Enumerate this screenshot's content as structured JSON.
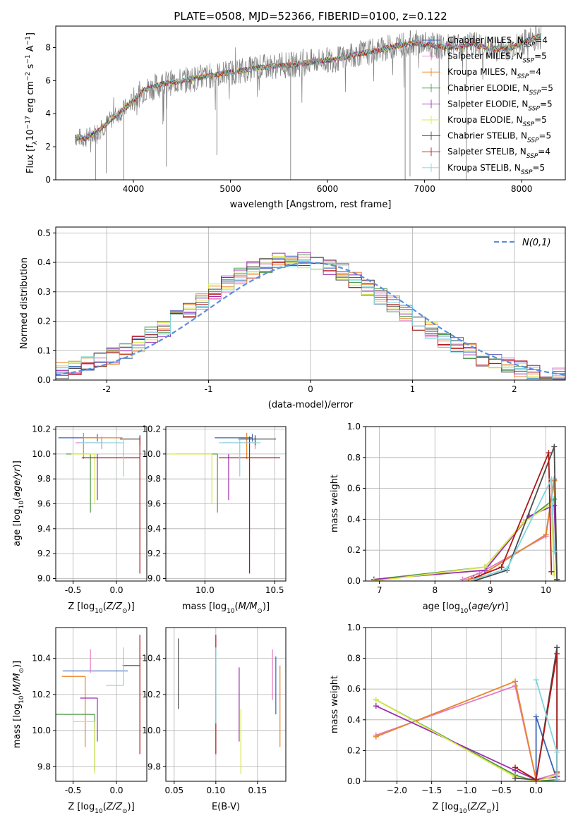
{
  "page_title": "PLATE=0508, MJD=52366, FIBERID=0100, z=0.122",
  "models": [
    {
      "name": "Chabrier MILES",
      "nssp": "4",
      "color": "#3a64b7"
    },
    {
      "name": "Salpeter MILES",
      "nssp": "5",
      "color": "#e57ac2"
    },
    {
      "name": "Kroupa MILES",
      "nssp": "4",
      "color": "#e8852b"
    },
    {
      "name": "Chabrier ELODIE",
      "nssp": "5",
      "color": "#4f9a4c"
    },
    {
      "name": "Salpeter ELODIE",
      "nssp": "5",
      "color": "#9b2fb0"
    },
    {
      "name": "Kroupa ELODIE",
      "nssp": "5",
      "color": "#d9e84a"
    },
    {
      "name": "Chabrier STELIB",
      "nssp": "5",
      "color": "#4a4a4a"
    },
    {
      "name": "Salpeter STELIB",
      "nssp": "4",
      "color": "#b01818"
    },
    {
      "name": "Kroupa STELIB",
      "nssp": "5",
      "color": "#7fd6de"
    }
  ],
  "chart_data": [
    {
      "id": "spectrum",
      "type": "line",
      "xlabel": "wavelength [Angstrom, rest frame]",
      "ylabel": "Flux [f_λ 10^-17 erg cm^-2 s^-1 A^-1]",
      "xlim": [
        3200,
        8450
      ],
      "ylim": [
        0,
        9.3
      ],
      "xticks": [
        4000,
        5000,
        6000,
        7000,
        8000
      ],
      "yticks": [
        0,
        2,
        4,
        6,
        8
      ],
      "continuum": {
        "x": [
          3400,
          3500,
          3650,
          3800,
          3950,
          4100,
          4300,
          4500,
          4700,
          4900,
          5100,
          5300,
          5500,
          5700,
          5900,
          6100,
          6300,
          6500,
          6700,
          6900,
          7100,
          7300,
          7500,
          7700,
          7900,
          8100,
          8200
        ],
        "y": [
          2.6,
          2.5,
          3.0,
          3.8,
          4.5,
          5.4,
          5.8,
          6.0,
          6.2,
          6.4,
          6.6,
          6.8,
          6.9,
          7.0,
          7.2,
          7.3,
          7.6,
          7.8,
          8.1,
          8.3,
          8.1,
          8.0,
          8.2,
          7.9,
          8.0,
          8.5,
          8.7
        ]
      },
      "grid": false,
      "legend": "right"
    },
    {
      "id": "residuals",
      "type": "histogram",
      "xlabel": "(data-model)/error",
      "ylabel": "Normed distribution",
      "xlim": [
        -2.5,
        2.5
      ],
      "ylim": [
        0,
        0.52
      ],
      "xticks": [
        -2,
        -1,
        0,
        1,
        2
      ],
      "yticks": [
        0.0,
        0.1,
        0.2,
        0.3,
        0.4,
        0.5
      ],
      "bin_width": 0.125,
      "reference": {
        "label": "N(0,1)",
        "color": "#5b8ee0"
      },
      "grid": true,
      "legend": "top-right"
    },
    {
      "id": "age_vs_Z",
      "type": "errorbar",
      "xlabel": "Z [log10(Z/Z⊙)]",
      "ylabel": "age [log10(age/yr)]",
      "xlim": [
        -0.7,
        0.35
      ],
      "ylim": [
        8.98,
        10.22
      ],
      "xticks": [
        -0.5,
        0.0
      ],
      "yticks": [
        9.0,
        9.2,
        9.4,
        9.6,
        9.8,
        10.0,
        10.2
      ],
      "points": [
        {
          "x": -0.22,
          "y": 10.13,
          "xerr": [
            0.45,
            0.0
          ],
          "yerr": [
            0.03,
            0.03
          ],
          "c": 0
        },
        {
          "x": -0.17,
          "y": 10.09,
          "xerr": [
            0.3,
            0.0
          ],
          "yerr": [
            0.05,
            0.05
          ],
          "c": 1
        },
        {
          "x": -0.38,
          "y": 10.13,
          "xerr": [
            0.0,
            0.45
          ],
          "yerr": [
            0.17,
            0.04
          ],
          "c": 2
        },
        {
          "x": -0.3,
          "y": 10.0,
          "xerr": [
            0.28,
            0.0
          ],
          "yerr": [
            0.47,
            0.0
          ],
          "c": 3
        },
        {
          "x": -0.22,
          "y": 9.98,
          "xerr": [
            0.0,
            0.0
          ],
          "yerr": [
            0.35,
            0.02
          ],
          "c": 4
        },
        {
          "x": -0.25,
          "y": 10.0,
          "xerr": [
            0.27,
            0.0
          ],
          "yerr": [
            0.4,
            0.0
          ],
          "c": 5
        },
        {
          "x": 0.27,
          "y": 10.12,
          "xerr": [
            0.23,
            0.0
          ],
          "yerr": [
            0.05,
            0.03
          ],
          "c": 6
        },
        {
          "x": 0.27,
          "y": 9.97,
          "xerr": [
            0.67,
            0.0
          ],
          "yerr": [
            0.93,
            0.17
          ],
          "c": 7
        },
        {
          "x": 0.08,
          "y": 10.09,
          "xerr": [
            0.5,
            0.0
          ],
          "yerr": [
            0.27,
            0.03
          ],
          "c": 8
        }
      ]
    },
    {
      "id": "age_vs_mass",
      "type": "errorbar",
      "xlabel": "mass [log10(M/M⊙)]",
      "ylabel": "",
      "xlim": [
        9.72,
        10.58
      ],
      "ylim": [
        8.98,
        10.22
      ],
      "xticks": [
        10.0,
        10.5
      ],
      "yticks": [
        9.0,
        9.2,
        9.4,
        9.6,
        9.8,
        10.0,
        10.2
      ],
      "points": [
        {
          "x": 10.34,
          "y": 10.13,
          "xerr": [
            0.27,
            0.0
          ],
          "yerr": [
            0.03,
            0.03
          ],
          "c": 0
        },
        {
          "x": 10.36,
          "y": 10.09,
          "xerr": [
            0.23,
            0.0
          ],
          "yerr": [
            0.05,
            0.05
          ],
          "c": 1
        },
        {
          "x": 10.3,
          "y": 10.13,
          "xerr": [
            0.0,
            0.0
          ],
          "yerr": [
            0.17,
            0.04
          ],
          "c": 2
        },
        {
          "x": 10.09,
          "y": 10.0,
          "xerr": [
            0.3,
            0.0
          ],
          "yerr": [
            0.47,
            0.0
          ],
          "c": 3
        },
        {
          "x": 10.17,
          "y": 9.98,
          "xerr": [
            0.0,
            0.0
          ],
          "yerr": [
            0.35,
            0.02
          ],
          "c": 4
        },
        {
          "x": 10.05,
          "y": 10.0,
          "xerr": [
            0.3,
            0.0
          ],
          "yerr": [
            0.4,
            0.0
          ],
          "c": 5
        },
        {
          "x": 10.36,
          "y": 10.12,
          "xerr": [
            0.12,
            0.15
          ],
          "yerr": [
            0.05,
            0.03
          ],
          "c": 6
        },
        {
          "x": 10.32,
          "y": 9.97,
          "xerr": [
            0.22,
            0.22
          ],
          "yerr": [
            0.93,
            0.17
          ],
          "c": 7
        },
        {
          "x": 10.25,
          "y": 10.09,
          "xerr": [
            0.15,
            0.15
          ],
          "yerr": [
            0.27,
            0.03
          ],
          "c": 8
        }
      ]
    },
    {
      "id": "weight_vs_age",
      "type": "line",
      "xlabel": "age [log10(age/yr)]",
      "ylabel": "mass weight",
      "xlim": [
        6.75,
        10.35
      ],
      "ylim": [
        0,
        1
      ],
      "xticks": [
        7,
        8,
        9,
        10
      ],
      "yticks": [
        0.0,
        0.2,
        0.4,
        0.6,
        0.8,
        1.0
      ],
      "series": [
        {
          "c": 0,
          "x": [
            8.8,
            10.0,
            10.15,
            10.2
          ],
          "y": [
            0.03,
            0.3,
            0.66,
            0.01
          ]
        },
        {
          "c": 1,
          "x": [
            8.5,
            8.8,
            10.0,
            10.15,
            10.2
          ],
          "y": [
            0.01,
            0.05,
            0.29,
            0.65,
            0.01
          ]
        },
        {
          "c": 2,
          "x": [
            8.6,
            8.8,
            10.0,
            10.15,
            10.2
          ],
          "y": [
            0.01,
            0.03,
            0.3,
            0.65,
            0.01
          ]
        },
        {
          "c": 3,
          "x": [
            6.9,
            8.9,
            9.6,
            10.15,
            10.2
          ],
          "y": [
            0.01,
            0.09,
            0.38,
            0.53,
            0.0
          ]
        },
        {
          "c": 4,
          "x": [
            6.9,
            8.9,
            9.7,
            10.15,
            10.2
          ],
          "y": [
            0.01,
            0.07,
            0.42,
            0.49,
            0.01
          ]
        },
        {
          "c": 5,
          "x": [
            6.9,
            8.9,
            9.6,
            10.1,
            10.15
          ],
          "y": [
            0.0,
            0.09,
            0.38,
            0.5,
            0.04
          ]
        },
        {
          "c": 6,
          "x": [
            8.7,
            9.3,
            10.15,
            10.2
          ],
          "y": [
            0.0,
            0.07,
            0.87,
            0.01
          ]
        },
        {
          "c": 7,
          "x": [
            8.7,
            9.2,
            10.05,
            10.1
          ],
          "y": [
            0.02,
            0.09,
            0.83,
            0.06
          ]
        },
        {
          "c": 8,
          "x": [
            8.7,
            9.3,
            10.1,
            10.15
          ],
          "y": [
            0.01,
            0.08,
            0.66,
            0.19
          ]
        }
      ]
    },
    {
      "id": "mass_vs_Z",
      "type": "errorbar",
      "xlabel": "Z [log10(Z/Z⊙)]",
      "ylabel": "mass [log10(M/M⊙)]",
      "xlim": [
        -0.7,
        0.35
      ],
      "ylim": [
        9.72,
        10.57
      ],
      "xticks": [
        -0.5,
        0.0
      ],
      "yticks": [
        9.8,
        10.0,
        10.2,
        10.4
      ],
      "points": [
        {
          "x": -0.32,
          "y": 10.33,
          "xerr": [
            0.3,
            0.45
          ],
          "yerr": [
            0.0,
            0.0
          ],
          "c": 0
        },
        {
          "x": -0.3,
          "y": 10.32,
          "xerr": [
            0.0,
            0.0
          ],
          "yerr": [
            0.0,
            0.13
          ],
          "c": 1
        },
        {
          "x": -0.36,
          "y": 10.3,
          "xerr": [
            0.27,
            0.0
          ],
          "yerr": [
            0.39,
            0.0
          ],
          "c": 2
        },
        {
          "x": -0.25,
          "y": 10.09,
          "xerr": [
            0.45,
            0.0
          ],
          "yerr": [
            0.31,
            0.0
          ],
          "c": 3
        },
        {
          "x": -0.22,
          "y": 10.18,
          "xerr": [
            0.2,
            0.0
          ],
          "yerr": [
            0.24,
            0.0
          ],
          "c": 4
        },
        {
          "x": -0.25,
          "y": 10.05,
          "xerr": [
            0.25,
            0.0
          ],
          "yerr": [
            0.29,
            0.0
          ],
          "c": 5
        },
        {
          "x": 0.27,
          "y": 10.36,
          "xerr": [
            0.2,
            0.0
          ],
          "yerr": [
            0.0,
            0.0
          ],
          "c": 6
        },
        {
          "x": 0.27,
          "y": 10.32,
          "xerr": [
            0.0,
            0.0
          ],
          "yerr": [
            0.45,
            0.21
          ],
          "c": 7
        },
        {
          "x": 0.08,
          "y": 10.25,
          "xerr": [
            0.2,
            0.0
          ],
          "yerr": [
            0.0,
            0.21
          ],
          "c": 8
        }
      ]
    },
    {
      "id": "mass_vs_ebv",
      "type": "errorbar",
      "xlabel": "E(B-V)",
      "ylabel": "",
      "xlim": [
        0.04,
        0.184
      ],
      "ylim": [
        9.72,
        10.57
      ],
      "xticks": [
        0.05,
        0.1,
        0.15
      ],
      "yticks": [
        9.8,
        10.0,
        10.2,
        10.4
      ],
      "points": [
        {
          "x": 0.055,
          "y": 10.33,
          "xerr": [
            0.0,
            0.0
          ],
          "yerr": [
            0.21,
            0.18
          ],
          "c": 6
        },
        {
          "x": 0.1,
          "y": 10.2,
          "xerr": [
            0.0,
            0.0
          ],
          "yerr": [
            0.33,
            0.33
          ],
          "c": 7
        },
        {
          "x": 0.1,
          "y": 10.25,
          "xerr": [
            0.0,
            0.0
          ],
          "yerr": [
            0.21,
            0.21
          ],
          "c": 8
        },
        {
          "x": 0.128,
          "y": 10.18,
          "xerr": [
            0.0,
            0.0
          ],
          "yerr": [
            0.24,
            0.17
          ],
          "c": 4
        },
        {
          "x": 0.13,
          "y": 10.05,
          "xerr": [
            0.0,
            0.0
          ],
          "yerr": [
            0.29,
            0.07
          ],
          "c": 5
        },
        {
          "x": 0.168,
          "y": 10.32,
          "xerr": [
            0.0,
            0.0
          ],
          "yerr": [
            0.15,
            0.13
          ],
          "c": 1
        },
        {
          "x": 0.172,
          "y": 10.25,
          "xerr": [
            0.0,
            0.0
          ],
          "yerr": [
            0.16,
            0.16
          ],
          "c": 0
        },
        {
          "x": 0.177,
          "y": 10.3,
          "xerr": [
            0.0,
            0.0
          ],
          "yerr": [
            0.39,
            0.06
          ],
          "c": 2
        }
      ]
    },
    {
      "id": "weight_vs_Z",
      "type": "line",
      "xlabel": "Z [log10(Z/Z⊙)]",
      "ylabel": "mass weight",
      "xlim": [
        -2.45,
        0.42
      ],
      "ylim": [
        0,
        1
      ],
      "xticks": [
        -2.0,
        -1.5,
        -1.0,
        -0.5,
        0.0
      ],
      "yticks": [
        0.0,
        0.2,
        0.4,
        0.6,
        0.8,
        1.0
      ],
      "series": [
        {
          "c": 0,
          "x": [
            -0.3,
            0.0,
            0.0,
            0.3
          ],
          "y": [
            0.03,
            0.0,
            0.42,
            0.01
          ]
        },
        {
          "c": 1,
          "x": [
            -2.3,
            -0.3,
            0.0,
            0.3
          ],
          "y": [
            0.3,
            0.62,
            0.01,
            0.05
          ]
        },
        {
          "c": 2,
          "x": [
            -2.3,
            -0.3,
            0.0,
            0.3
          ],
          "y": [
            0.29,
            0.65,
            0.01,
            0.03
          ]
        },
        {
          "c": 3,
          "x": [
            -2.3,
            -0.3,
            0.0,
            0.3
          ],
          "y": [
            0.53,
            0.04,
            0.0,
            0.01
          ]
        },
        {
          "c": 4,
          "x": [
            -2.3,
            -0.3,
            0.0,
            0.3
          ],
          "y": [
            0.49,
            0.07,
            0.01,
            0.03
          ]
        },
        {
          "c": 5,
          "x": [
            -2.3,
            -0.3,
            0.0,
            0.3
          ],
          "y": [
            0.53,
            0.03,
            0.0,
            0.04
          ]
        },
        {
          "c": 6,
          "x": [
            -0.3,
            0.0,
            0.3,
            0.3
          ],
          "y": [
            0.02,
            0.01,
            0.87,
            0.01
          ]
        },
        {
          "c": 7,
          "x": [
            -0.3,
            0.0,
            0.3,
            0.3
          ],
          "y": [
            0.09,
            0.01,
            0.83,
            0.06
          ]
        },
        {
          "c": 8,
          "x": [
            0.0,
            0.3,
            0.3
          ],
          "y": [
            0.66,
            0.19,
            0.01
          ]
        }
      ]
    }
  ]
}
